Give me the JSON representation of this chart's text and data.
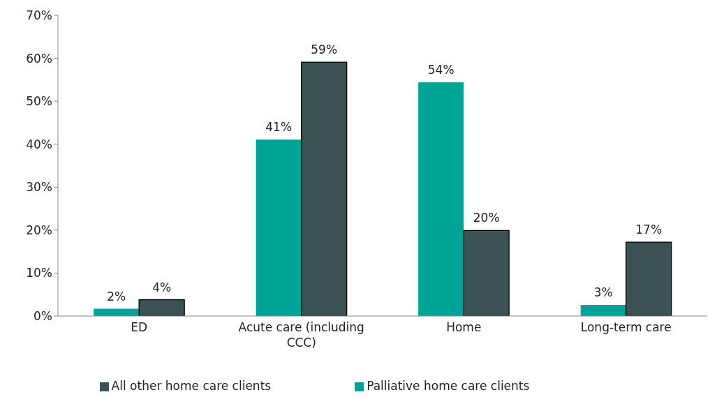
{
  "chart_data": {
    "type": "bar",
    "categories": [
      "ED",
      "Acute care (including CCC)",
      "Home",
      "Long-term care"
    ],
    "series": [
      {
        "name": "Palliative home care clients",
        "color": "#00a497",
        "values": [
          1.7,
          41.1,
          54.4,
          2.6
        ],
        "value_labels": [
          "2%",
          "41%",
          "54%",
          "3%"
        ]
      },
      {
        "name": "All other home care clients",
        "color": "#3a5254",
        "values": [
          3.8,
          59.1,
          19.9,
          17.2
        ],
        "value_labels": [
          "4%",
          "59%",
          "20%",
          "17%"
        ]
      }
    ],
    "ylim": [
      0,
      70
    ],
    "yticks": [
      {
        "value": 0,
        "label": "0%"
      },
      {
        "value": 10,
        "label": "10%"
      },
      {
        "value": 20,
        "label": "20%"
      },
      {
        "value": 30,
        "label": "30%"
      },
      {
        "value": 40,
        "label": "40%"
      },
      {
        "value": 50,
        "label": "50%"
      },
      {
        "value": 60,
        "label": "60%"
      },
      {
        "value": 70,
        "label": "70%"
      }
    ],
    "grid": false,
    "legend": "bottom"
  }
}
